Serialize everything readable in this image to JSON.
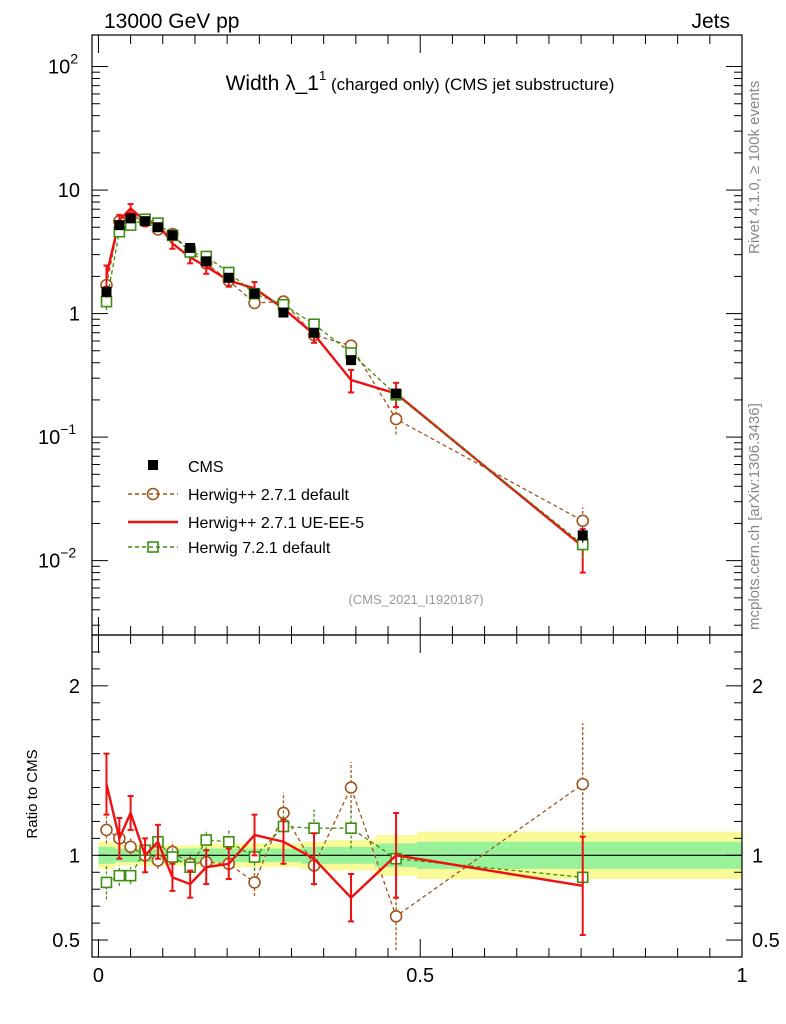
{
  "header": {
    "beam": "13000 GeV pp",
    "process": "Jets"
  },
  "title": {
    "main": "Width λ_1",
    "sup": "1",
    "suffix": " (charged only) (CMS jet substructure)"
  },
  "side_text": {
    "rivet": "Rivet 4.1.0, ≥ 100k events",
    "mcplots": "mcplots.cern.ch [arXiv:1306.3436]"
  },
  "analysis_id": "(CMS_2021_I1920187)",
  "ratio_ylabel": "Ratio to CMS",
  "colors": {
    "data": "#000000",
    "herwigpp_default": "#a0561c",
    "herwigpp_ueee5": "#ee1111",
    "herwig72_default": "#3e8e10",
    "band_inner": "#99f299",
    "band_outer": "#fafa99"
  },
  "chart_data": [
    {
      "type": "line",
      "panel": "main",
      "title": "Width λ_1^1 (charged only) (CMS jet substructure)",
      "yscale": "log",
      "ylim": [
        0.0025,
        180
      ],
      "xlim": [
        -0.01,
        1.0
      ],
      "yticks": [
        {
          "v": 100,
          "base": "10",
          "exp": "2"
        },
        {
          "v": 10,
          "base": "10",
          "exp": ""
        },
        {
          "v": 1,
          "base": "1",
          "exp": ""
        },
        {
          "v": 0.1,
          "base": "10",
          "exp": "−1"
        },
        {
          "v": 0.01,
          "base": "10",
          "exp": "−2"
        }
      ],
      "legend_position": "bottom-left",
      "x": [
        0.0125,
        0.0325,
        0.05,
        0.0725,
        0.0925,
        0.115,
        0.1425,
        0.1675,
        0.2025,
        0.2425,
        0.2875,
        0.335,
        0.3925,
        0.4625,
        0.7525
      ],
      "series": [
        {
          "name": "CMS",
          "style": "data",
          "values": [
            1.5,
            5.2,
            5.9,
            5.6,
            5.0,
            4.3,
            3.4,
            2.65,
            1.95,
            1.45,
            1.02,
            0.7,
            0.42,
            0.225,
            0.016
          ],
          "errors": [
            0.15,
            0.3,
            0.3,
            0.3,
            0.3,
            0.25,
            0.2,
            0.15,
            0.12,
            0.1,
            0.08,
            0.05,
            0.03,
            0.02,
            0.002
          ]
        },
        {
          "name": "Herwig++ 2.7.1 default",
          "style": "circle",
          "values": [
            1.7,
            5.6,
            6.2,
            5.6,
            4.8,
            4.4,
            3.2,
            2.55,
            1.85,
            1.22,
            1.25,
            0.67,
            0.55,
            0.14,
            0.021
          ],
          "errors": [
            0.15,
            0.3,
            0.3,
            0.3,
            0.25,
            0.3,
            0.25,
            0.2,
            0.15,
            0.12,
            0.12,
            0.08,
            0.06,
            0.035,
            0.006
          ]
        },
        {
          "name": "Herwig++ 2.7.1 UE-EE-5",
          "style": "line",
          "values": [
            2.05,
            5.7,
            7.1,
            5.6,
            5.3,
            3.7,
            2.85,
            2.4,
            1.85,
            1.6,
            1.1,
            0.68,
            0.29,
            0.225,
            0.013
          ],
          "errors": [
            0.4,
            0.6,
            0.6,
            0.5,
            0.5,
            0.35,
            0.3,
            0.3,
            0.2,
            0.2,
            0.13,
            0.1,
            0.06,
            0.05,
            0.005
          ]
        },
        {
          "name": "Herwig 7.2.1 default",
          "style": "square",
          "values": [
            1.25,
            4.6,
            5.2,
            5.8,
            5.4,
            4.3,
            3.15,
            2.9,
            2.15,
            1.45,
            1.18,
            0.82,
            0.48,
            0.22,
            0.0135
          ],
          "errors": [
            0.18,
            0.3,
            0.3,
            0.3,
            0.3,
            0.25,
            0.2,
            0.2,
            0.15,
            0.12,
            0.12,
            0.08,
            0.05,
            0.03,
            0.003
          ]
        }
      ]
    },
    {
      "type": "line",
      "panel": "ratio",
      "ylabel": "Ratio to CMS",
      "ylim": [
        0.4,
        2.3
      ],
      "xlim": [
        -0.01,
        1.0
      ],
      "yticks": [
        {
          "v": 2,
          "label": "2"
        },
        {
          "v": 1,
          "label": "1"
        },
        {
          "v": 0.5,
          "label": "0.5"
        }
      ],
      "xticks": [
        {
          "v": 0,
          "label": "0"
        },
        {
          "v": 0.5,
          "label": "0.5"
        },
        {
          "v": 1,
          "label": "1"
        }
      ],
      "bins": [
        {
          "lo": 0.0,
          "hi": 0.025,
          "in_lo": 0.95,
          "in_hi": 1.05,
          "out_lo": 0.92,
          "out_hi": 1.08
        },
        {
          "lo": 0.025,
          "hi": 0.04,
          "in_lo": 0.96,
          "in_hi": 1.04,
          "out_lo": 0.94,
          "out_hi": 1.06
        },
        {
          "lo": 0.04,
          "hi": 0.06,
          "in_lo": 0.96,
          "in_hi": 1.04,
          "out_lo": 0.94,
          "out_hi": 1.06
        },
        {
          "lo": 0.06,
          "hi": 0.085,
          "in_lo": 0.96,
          "in_hi": 1.04,
          "out_lo": 0.94,
          "out_hi": 1.06
        },
        {
          "lo": 0.085,
          "hi": 0.1,
          "in_lo": 0.96,
          "in_hi": 1.04,
          "out_lo": 0.94,
          "out_hi": 1.06
        },
        {
          "lo": 0.1,
          "hi": 0.13,
          "in_lo": 0.96,
          "in_hi": 1.04,
          "out_lo": 0.94,
          "out_hi": 1.06
        },
        {
          "lo": 0.13,
          "hi": 0.155,
          "in_lo": 0.96,
          "in_hi": 1.04,
          "out_lo": 0.94,
          "out_hi": 1.06
        },
        {
          "lo": 0.155,
          "hi": 0.18,
          "in_lo": 0.96,
          "in_hi": 1.04,
          "out_lo": 0.93,
          "out_hi": 1.07
        },
        {
          "lo": 0.18,
          "hi": 0.225,
          "in_lo": 0.96,
          "in_hi": 1.04,
          "out_lo": 0.93,
          "out_hi": 1.07
        },
        {
          "lo": 0.225,
          "hi": 0.26,
          "in_lo": 0.96,
          "in_hi": 1.04,
          "out_lo": 0.93,
          "out_hi": 1.07
        },
        {
          "lo": 0.26,
          "hi": 0.315,
          "in_lo": 0.96,
          "in_hi": 1.04,
          "out_lo": 0.93,
          "out_hi": 1.07
        },
        {
          "lo": 0.315,
          "hi": 0.355,
          "in_lo": 0.95,
          "in_hi": 1.05,
          "out_lo": 0.92,
          "out_hi": 1.08
        },
        {
          "lo": 0.355,
          "hi": 0.43,
          "in_lo": 0.95,
          "in_hi": 1.05,
          "out_lo": 0.91,
          "out_hi": 1.09
        },
        {
          "lo": 0.43,
          "hi": 0.495,
          "in_lo": 0.93,
          "in_hi": 1.07,
          "out_lo": 0.88,
          "out_hi": 1.12
        },
        {
          "lo": 0.495,
          "hi": 1.0,
          "in_lo": 0.92,
          "in_hi": 1.08,
          "out_lo": 0.86,
          "out_hi": 1.14
        }
      ],
      "x": [
        0.0125,
        0.0325,
        0.05,
        0.0725,
        0.0925,
        0.115,
        0.1425,
        0.1675,
        0.2025,
        0.2425,
        0.2875,
        0.335,
        0.3925,
        0.4625,
        0.7525
      ],
      "series": [
        {
          "name": "Herwig++ 2.7.1 default",
          "style": "circle",
          "values": [
            1.15,
            1.1,
            1.05,
            1.0,
            0.97,
            1.02,
            0.95,
            0.96,
            0.95,
            0.84,
            1.25,
            0.94,
            1.4,
            0.64,
            1.42
          ],
          "errors": [
            0.08,
            0.05,
            0.05,
            0.05,
            0.05,
            0.06,
            0.06,
            0.06,
            0.07,
            0.08,
            0.12,
            0.12,
            0.15,
            0.2,
            0.36
          ]
        },
        {
          "name": "Herwig++ 2.7.1 UE-EE-5",
          "style": "line",
          "values": [
            1.42,
            1.1,
            1.25,
            1.0,
            1.08,
            0.87,
            0.83,
            0.93,
            0.95,
            1.12,
            1.08,
            0.98,
            0.75,
            1.0,
            0.82
          ],
          "errors": [
            0.18,
            0.12,
            0.1,
            0.1,
            0.1,
            0.08,
            0.08,
            0.1,
            0.09,
            0.12,
            0.13,
            0.15,
            0.14,
            0.25,
            0.29
          ]
        },
        {
          "name": "Herwig 7.2.1 default",
          "style": "square",
          "values": [
            0.84,
            0.88,
            0.88,
            1.03,
            1.08,
            0.99,
            0.93,
            1.09,
            1.08,
            0.99,
            1.17,
            1.16,
            1.16,
            0.98,
            0.87
          ],
          "errors": [
            0.1,
            0.06,
            0.05,
            0.05,
            0.05,
            0.05,
            0.05,
            0.06,
            0.07,
            0.08,
            0.1,
            0.11,
            0.12,
            0.15,
            0.2
          ]
        }
      ]
    }
  ]
}
